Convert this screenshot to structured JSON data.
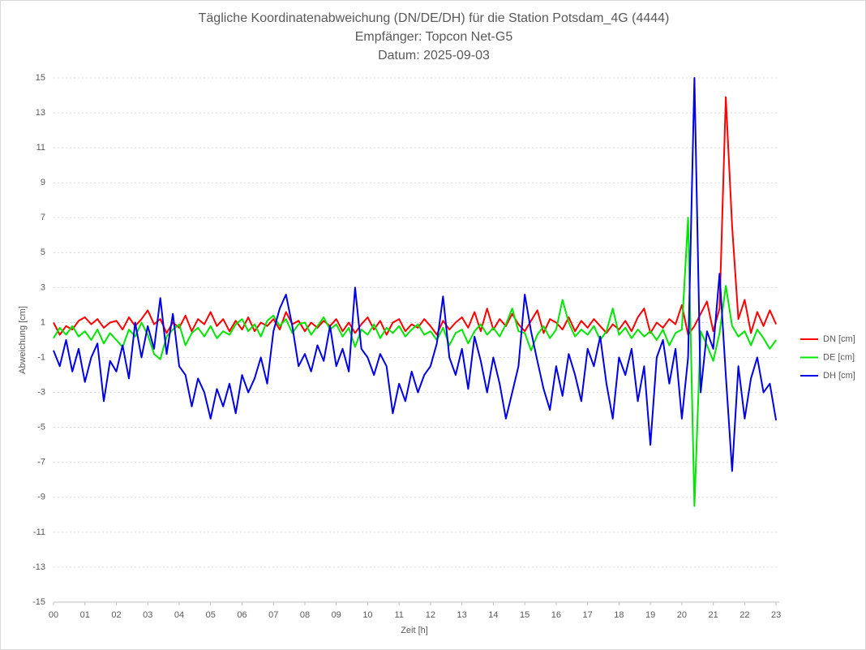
{
  "chart_data": {
    "type": "line",
    "title_lines": [
      "Tägliche Koordinatenabweichung (DN/DE/DH) für die Station Potsdam_4G (4444)",
      "Empfänger: Topcon Net-G5",
      "Datum: 2025-09-03"
    ],
    "x_label": "Zeit [h]",
    "y_label": "Abweichung [cm]",
    "xlim": [
      0,
      23.1
    ],
    "ylim": [
      -15,
      15
    ],
    "xticks": [
      {
        "value": 0,
        "label": "00"
      },
      {
        "value": 1,
        "label": "01"
      },
      {
        "value": 2,
        "label": "02"
      },
      {
        "value": 3,
        "label": "03"
      },
      {
        "value": 4,
        "label": "04"
      },
      {
        "value": 5,
        "label": "05"
      },
      {
        "value": 6,
        "label": "06"
      },
      {
        "value": 7,
        "label": "07"
      },
      {
        "value": 8,
        "label": "08"
      },
      {
        "value": 9,
        "label": "09"
      },
      10,
      11,
      12,
      13,
      14,
      15,
      16,
      17,
      18,
      19,
      20,
      21,
      22,
      23
    ],
    "yticks": [
      -15,
      -13,
      -11,
      -9,
      -7,
      -5,
      -3,
      -1,
      1,
      3,
      5,
      7,
      9,
      11,
      13,
      15
    ],
    "grid": true,
    "legend": "right",
    "x": [
      0.0,
      0.2,
      0.4,
      0.6,
      0.8,
      1.0,
      1.2,
      1.4,
      1.6,
      1.8,
      2.0,
      2.2,
      2.4,
      2.6,
      2.8,
      3.0,
      3.2,
      3.4,
      3.6,
      3.8,
      4.0,
      4.2,
      4.4,
      4.6,
      4.8,
      5.0,
      5.2,
      5.4,
      5.6,
      5.8,
      6.0,
      6.2,
      6.4,
      6.6,
      6.8,
      7.0,
      7.2,
      7.4,
      7.6,
      7.8,
      8.0,
      8.2,
      8.4,
      8.6,
      8.8,
      9.0,
      9.2,
      9.4,
      9.6,
      9.8,
      10.0,
      10.2,
      10.4,
      10.6,
      10.8,
      11.0,
      11.2,
      11.4,
      11.6,
      11.8,
      12.0,
      12.2,
      12.4,
      12.6,
      12.8,
      13.0,
      13.2,
      13.4,
      13.6,
      13.8,
      14.0,
      14.2,
      14.4,
      14.6,
      14.8,
      15.0,
      15.2,
      15.4,
      15.6,
      15.8,
      16.0,
      16.2,
      16.4,
      16.6,
      16.8,
      17.0,
      17.2,
      17.4,
      17.6,
      17.8,
      18.0,
      18.2,
      18.4,
      18.6,
      18.8,
      19.0,
      19.2,
      19.4,
      19.6,
      19.8,
      20.0,
      20.2,
      20.4,
      20.6,
      20.8,
      21.0,
      21.2,
      21.4,
      21.6,
      21.8,
      22.0,
      22.2,
      22.4,
      22.6,
      22.8,
      23.0
    ],
    "series": [
      {
        "name": "DN [cm]",
        "color": "#ff0000",
        "values": [
          1.0,
          0.3,
          0.8,
          0.6,
          1.1,
          1.3,
          0.9,
          1.2,
          0.7,
          1.0,
          1.1,
          0.6,
          1.3,
          0.8,
          1.2,
          1.7,
          0.9,
          1.2,
          0.4,
          1.0,
          0.7,
          1.4,
          0.5,
          1.2,
          0.9,
          1.6,
          0.8,
          1.2,
          0.5,
          1.1,
          0.6,
          1.3,
          0.5,
          1.0,
          0.8,
          1.2,
          0.6,
          1.6,
          0.9,
          1.1,
          0.5,
          1.0,
          0.7,
          1.1,
          0.8,
          1.2,
          0.5,
          1.0,
          0.4,
          0.9,
          1.3,
          0.6,
          1.1,
          0.3,
          1.0,
          1.2,
          0.5,
          0.9,
          0.7,
          1.2,
          0.8,
          0.3,
          1.1,
          0.6,
          1.0,
          1.3,
          0.7,
          1.6,
          0.5,
          1.8,
          0.6,
          1.2,
          0.8,
          1.5,
          0.9,
          0.5,
          1.1,
          1.7,
          0.4,
          1.2,
          1.0,
          0.6,
          1.3,
          0.5,
          1.1,
          0.7,
          1.2,
          0.8,
          0.4,
          0.9,
          0.6,
          1.1,
          0.5,
          1.3,
          1.8,
          0.4,
          1.0,
          0.7,
          1.2,
          0.9,
          2.0,
          0.3,
          0.8,
          1.5,
          2.2,
          0.5,
          1.8,
          13.9,
          6.5,
          1.2,
          2.3,
          0.4,
          1.6,
          0.8,
          1.7,
          0.9
        ]
      },
      {
        "name": "DE [cm]",
        "color": "#00e600",
        "values": [
          0.1,
          0.7,
          0.3,
          0.8,
          0.2,
          0.5,
          0.0,
          0.6,
          -0.2,
          0.4,
          0.0,
          -0.4,
          0.6,
          0.2,
          1.0,
          0.3,
          -0.8,
          -1.1,
          0.2,
          0.6,
          0.9,
          -0.3,
          0.4,
          0.7,
          0.2,
          0.8,
          0.1,
          0.5,
          0.3,
          0.9,
          1.2,
          0.5,
          0.9,
          0.2,
          1.1,
          1.4,
          0.8,
          1.2,
          0.4,
          0.9,
          1.0,
          0.3,
          0.8,
          1.3,
          0.6,
          0.9,
          0.2,
          0.7,
          -0.4,
          0.6,
          0.3,
          0.9,
          0.1,
          0.7,
          0.4,
          0.8,
          0.2,
          0.6,
          0.9,
          0.3,
          0.5,
          0.0,
          0.7,
          -0.3,
          0.4,
          0.6,
          -0.2,
          0.5,
          0.9,
          0.3,
          0.7,
          0.2,
          0.9,
          1.8,
          0.5,
          0.4,
          -0.6,
          0.3,
          0.8,
          0.1,
          0.6,
          2.3,
          1.0,
          0.2,
          0.6,
          0.3,
          0.8,
          0.0,
          0.5,
          1.8,
          0.3,
          0.7,
          0.1,
          0.6,
          0.2,
          0.5,
          0.0,
          0.6,
          -0.3,
          0.4,
          0.6,
          7.0,
          -9.5,
          0.5,
          -0.3,
          -1.2,
          0.4,
          3.1,
          0.8,
          0.2,
          0.5,
          -0.3,
          0.6,
          0.1,
          -0.5,
          0.0
        ]
      },
      {
        "name": "DH [cm]",
        "color": "#0000e6",
        "values": [
          -0.6,
          -1.5,
          0.0,
          -1.8,
          -0.5,
          -2.4,
          -1.0,
          -0.2,
          -3.5,
          -1.2,
          -1.8,
          -0.3,
          -2.2,
          1.0,
          -1.0,
          0.8,
          -0.5,
          2.4,
          -0.8,
          1.5,
          -1.5,
          -2.0,
          -3.8,
          -2.2,
          -3.0,
          -4.5,
          -2.8,
          -3.8,
          -2.5,
          -4.2,
          -2.0,
          -3.0,
          -2.2,
          -1.0,
          -2.5,
          0.5,
          1.8,
          2.6,
          0.8,
          -1.5,
          -0.8,
          -1.8,
          -0.3,
          -1.2,
          0.8,
          -1.5,
          -0.5,
          -1.8,
          3.0,
          -0.5,
          -1.0,
          -2.0,
          -0.8,
          -1.5,
          -4.2,
          -2.5,
          -3.5,
          -1.8,
          -3.0,
          -2.0,
          -1.5,
          -0.2,
          2.5,
          -1.0,
          -2.0,
          -0.5,
          -2.8,
          0.2,
          -1.2,
          -3.0,
          -1.0,
          -2.5,
          -4.5,
          -3.0,
          -1.5,
          2.6,
          0.5,
          -1.2,
          -2.8,
          -4.0,
          -1.5,
          -3.2,
          -0.8,
          -2.0,
          -3.5,
          -0.5,
          -1.5,
          0.2,
          -2.5,
          -4.5,
          -1.0,
          -2.0,
          -0.5,
          -3.5,
          -1.5,
          -6.0,
          -1.0,
          0.0,
          -2.5,
          -0.5,
          -4.5,
          -1.0,
          15.0,
          -3.0,
          0.5,
          -0.5,
          3.8,
          -2.0,
          -7.5,
          -1.5,
          -4.5,
          -2.2,
          -1.0,
          -3.0,
          -2.5,
          -4.6
        ]
      }
    ]
  }
}
